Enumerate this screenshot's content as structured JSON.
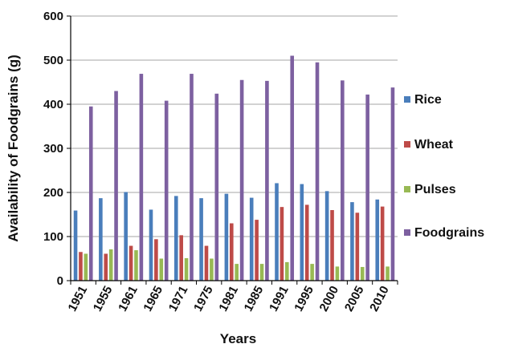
{
  "chart_data": {
    "type": "bar",
    "title": "",
    "xlabel": "Years",
    "ylabel": "Availability of Foodgrains (g)",
    "ylim": [
      0,
      600
    ],
    "yticks": [
      0,
      100,
      200,
      300,
      400,
      500,
      600
    ],
    "grid": true,
    "legend_position": "right",
    "categories": [
      "1951",
      "1955",
      "1961",
      "1965",
      "1971",
      "1975",
      "1981",
      "1985",
      "1991",
      "1995",
      "2000",
      "2005",
      "2010"
    ],
    "series": [
      {
        "name": "Rice",
        "color": "#4a7ebb",
        "values": [
          159,
          187,
          201,
          161,
          192,
          187,
          197,
          188,
          221,
          219,
          203,
          178,
          184
        ]
      },
      {
        "name": "Wheat",
        "color": "#be4b48",
        "values": [
          65,
          61,
          79,
          94,
          103,
          79,
          130,
          138,
          167,
          172,
          160,
          154,
          168
        ]
      },
      {
        "name": "Pulses",
        "color": "#98b954",
        "values": [
          61,
          71,
          69,
          50,
          51,
          50,
          38,
          38,
          42,
          38,
          32,
          31,
          32
        ]
      },
      {
        "name": "Foodgrains",
        "color": "#7d60a0",
        "values": [
          395,
          430,
          469,
          408,
          469,
          424,
          455,
          453,
          510,
          495,
          454,
          422,
          438
        ]
      }
    ]
  }
}
